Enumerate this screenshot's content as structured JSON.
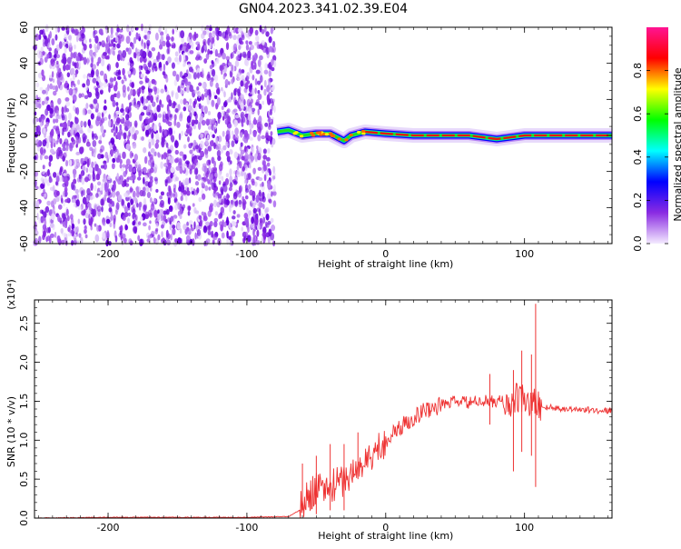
{
  "title": "GN04.2023.341.02.39.E04",
  "chart_data": [
    {
      "type": "heatmap",
      "xlabel": "Height of straight line (km)",
      "ylabel": "Frequency (Hz)",
      "xlim": [
        -253,
        163
      ],
      "ylim": [
        -60,
        60
      ],
      "xticks": [
        -200,
        -100,
        0,
        100
      ],
      "yticks": [
        -60,
        -40,
        -20,
        0,
        20,
        40,
        60
      ],
      "noise_region_x": [
        -253,
        -80
      ],
      "signal_track": [
        {
          "x": -78,
          "f": 2
        },
        {
          "x": -70,
          "f": 3
        },
        {
          "x": -60,
          "f": 0
        },
        {
          "x": -50,
          "f": 1
        },
        {
          "x": -40,
          "f": 1
        },
        {
          "x": -30,
          "f": -3
        },
        {
          "x": -25,
          "f": 0
        },
        {
          "x": -15,
          "f": 2
        },
        {
          "x": 0,
          "f": 1
        },
        {
          "x": 20,
          "f": 0
        },
        {
          "x": 60,
          "f": 0
        },
        {
          "x": 80,
          "f": -2
        },
        {
          "x": 100,
          "f": 0
        },
        {
          "x": 163,
          "f": 0
        }
      ],
      "colorbar": {
        "label": "Normalized spectral amplitude",
        "range": [
          0,
          1
        ],
        "ticks": [
          0.0,
          0.2,
          0.4,
          0.6,
          0.8
        ],
        "tick_labels": [
          "0.0",
          "0.2",
          "0.4",
          "0.6",
          "0.8"
        ],
        "colormap_stops": [
          "#f4eaff",
          "#8a2be2",
          "#0000ff",
          "#00ffff",
          "#00ff00",
          "#ffff00",
          "#ff0000",
          "#ff1493"
        ]
      }
    },
    {
      "type": "line",
      "xlabel": "Height of straight line (km)",
      "ylabel": "SNR (10 * v/v)",
      "multiplier_label": "(x10⁴)",
      "xlim": [
        -253,
        163
      ],
      "ylim": [
        0,
        2.8
      ],
      "xticks": [
        -200,
        -100,
        0,
        100
      ],
      "yticks": [
        0.0,
        0.5,
        1.0,
        1.5,
        2.0,
        2.5
      ],
      "ytick_labels": [
        "0.0",
        "0.5",
        "1.0",
        "1.5",
        "2.0",
        "2.5"
      ],
      "series": [
        {
          "color": "#ee3333",
          "x": [
            -253,
            -200,
            -150,
            -100,
            -70,
            -62,
            -55,
            -50,
            -45,
            -40,
            -35,
            -30,
            -25,
            -20,
            -15,
            -10,
            -5,
            0,
            10,
            20,
            30,
            40,
            50,
            60,
            70,
            80,
            85,
            90,
            95,
            100,
            105,
            108,
            110,
            115,
            120,
            130,
            140,
            150,
            163
          ],
          "y": [
            0.0,
            0.01,
            0.01,
            0.01,
            0.02,
            0.1,
            0.3,
            0.4,
            0.35,
            0.4,
            0.45,
            0.5,
            0.55,
            0.65,
            0.7,
            0.8,
            0.9,
            1.0,
            1.15,
            1.3,
            1.4,
            1.45,
            1.5,
            1.48,
            1.5,
            1.5,
            1.5,
            1.45,
            1.55,
            1.5,
            1.45,
            1.5,
            1.45,
            1.42,
            1.42,
            1.4,
            1.4,
            1.38,
            1.38
          ],
          "spikes": [
            {
              "x": -60,
              "low": 0.1,
              "high": 0.7
            },
            {
              "x": -50,
              "low": 0.05,
              "high": 0.8
            },
            {
              "x": -40,
              "low": 0.1,
              "high": 0.95
            },
            {
              "x": -30,
              "low": 0.1,
              "high": 0.95
            },
            {
              "x": -20,
              "low": 0.5,
              "high": 1.1
            },
            {
              "x": 75,
              "low": 1.2,
              "high": 1.85
            },
            {
              "x": 92,
              "low": 0.6,
              "high": 1.9
            },
            {
              "x": 98,
              "low": 0.85,
              "high": 2.15
            },
            {
              "x": 105,
              "low": 0.8,
              "high": 2.1
            },
            {
              "x": 108,
              "low": 0.4,
              "high": 2.75
            }
          ]
        }
      ]
    }
  ]
}
